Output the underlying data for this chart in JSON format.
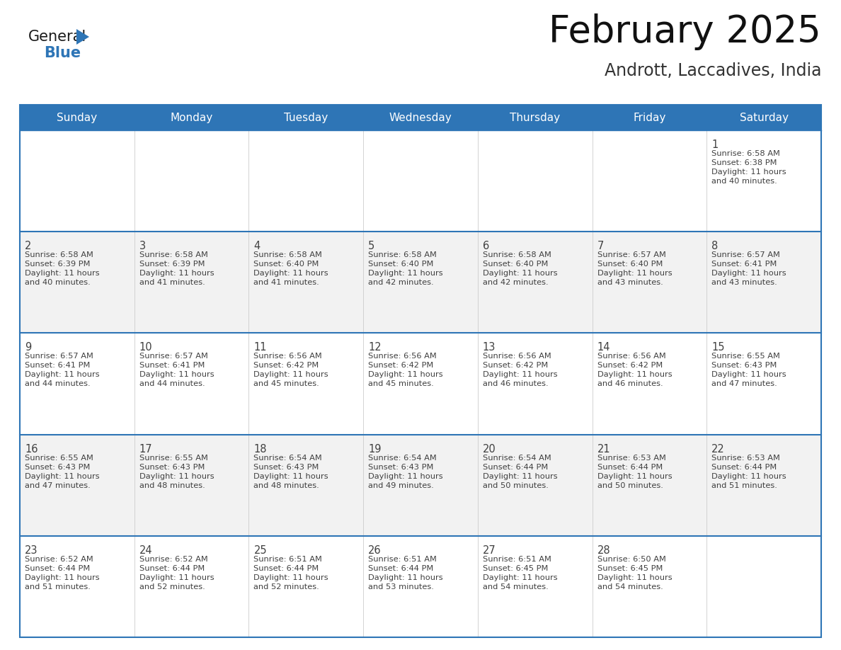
{
  "title": "February 2025",
  "subtitle": "Andrott, Laccadives, India",
  "header_bg": "#2E75B6",
  "header_text_color": "#FFFFFF",
  "cell_bg_odd": "#FFFFFF",
  "cell_bg_even": "#F2F2F2",
  "border_color": "#2E75B6",
  "text_color": "#404040",
  "days_of_week": [
    "Sunday",
    "Monday",
    "Tuesday",
    "Wednesday",
    "Thursday",
    "Friday",
    "Saturday"
  ],
  "calendar_data": [
    [
      null,
      null,
      null,
      null,
      null,
      null,
      {
        "day": "1",
        "sunrise": "6:58 AM",
        "sunset": "6:38 PM",
        "daylight1": "Daylight: 11 hours",
        "daylight2": "and 40 minutes."
      }
    ],
    [
      {
        "day": "2",
        "sunrise": "6:58 AM",
        "sunset": "6:39 PM",
        "daylight1": "Daylight: 11 hours",
        "daylight2": "and 40 minutes."
      },
      {
        "day": "3",
        "sunrise": "6:58 AM",
        "sunset": "6:39 PM",
        "daylight1": "Daylight: 11 hours",
        "daylight2": "and 41 minutes."
      },
      {
        "day": "4",
        "sunrise": "6:58 AM",
        "sunset": "6:40 PM",
        "daylight1": "Daylight: 11 hours",
        "daylight2": "and 41 minutes."
      },
      {
        "day": "5",
        "sunrise": "6:58 AM",
        "sunset": "6:40 PM",
        "daylight1": "Daylight: 11 hours",
        "daylight2": "and 42 minutes."
      },
      {
        "day": "6",
        "sunrise": "6:58 AM",
        "sunset": "6:40 PM",
        "daylight1": "Daylight: 11 hours",
        "daylight2": "and 42 minutes."
      },
      {
        "day": "7",
        "sunrise": "6:57 AM",
        "sunset": "6:40 PM",
        "daylight1": "Daylight: 11 hours",
        "daylight2": "and 43 minutes."
      },
      {
        "day": "8",
        "sunrise": "6:57 AM",
        "sunset": "6:41 PM",
        "daylight1": "Daylight: 11 hours",
        "daylight2": "and 43 minutes."
      }
    ],
    [
      {
        "day": "9",
        "sunrise": "6:57 AM",
        "sunset": "6:41 PM",
        "daylight1": "Daylight: 11 hours",
        "daylight2": "and 44 minutes."
      },
      {
        "day": "10",
        "sunrise": "6:57 AM",
        "sunset": "6:41 PM",
        "daylight1": "Daylight: 11 hours",
        "daylight2": "and 44 minutes."
      },
      {
        "day": "11",
        "sunrise": "6:56 AM",
        "sunset": "6:42 PM",
        "daylight1": "Daylight: 11 hours",
        "daylight2": "and 45 minutes."
      },
      {
        "day": "12",
        "sunrise": "6:56 AM",
        "sunset": "6:42 PM",
        "daylight1": "Daylight: 11 hours",
        "daylight2": "and 45 minutes."
      },
      {
        "day": "13",
        "sunrise": "6:56 AM",
        "sunset": "6:42 PM",
        "daylight1": "Daylight: 11 hours",
        "daylight2": "and 46 minutes."
      },
      {
        "day": "14",
        "sunrise": "6:56 AM",
        "sunset": "6:42 PM",
        "daylight1": "Daylight: 11 hours",
        "daylight2": "and 46 minutes."
      },
      {
        "day": "15",
        "sunrise": "6:55 AM",
        "sunset": "6:43 PM",
        "daylight1": "Daylight: 11 hours",
        "daylight2": "and 47 minutes."
      }
    ],
    [
      {
        "day": "16",
        "sunrise": "6:55 AM",
        "sunset": "6:43 PM",
        "daylight1": "Daylight: 11 hours",
        "daylight2": "and 47 minutes."
      },
      {
        "day": "17",
        "sunrise": "6:55 AM",
        "sunset": "6:43 PM",
        "daylight1": "Daylight: 11 hours",
        "daylight2": "and 48 minutes."
      },
      {
        "day": "18",
        "sunrise": "6:54 AM",
        "sunset": "6:43 PM",
        "daylight1": "Daylight: 11 hours",
        "daylight2": "and 48 minutes."
      },
      {
        "day": "19",
        "sunrise": "6:54 AM",
        "sunset": "6:43 PM",
        "daylight1": "Daylight: 11 hours",
        "daylight2": "and 49 minutes."
      },
      {
        "day": "20",
        "sunrise": "6:54 AM",
        "sunset": "6:44 PM",
        "daylight1": "Daylight: 11 hours",
        "daylight2": "and 50 minutes."
      },
      {
        "day": "21",
        "sunrise": "6:53 AM",
        "sunset": "6:44 PM",
        "daylight1": "Daylight: 11 hours",
        "daylight2": "and 50 minutes."
      },
      {
        "day": "22",
        "sunrise": "6:53 AM",
        "sunset": "6:44 PM",
        "daylight1": "Daylight: 11 hours",
        "daylight2": "and 51 minutes."
      }
    ],
    [
      {
        "day": "23",
        "sunrise": "6:52 AM",
        "sunset": "6:44 PM",
        "daylight1": "Daylight: 11 hours",
        "daylight2": "and 51 minutes."
      },
      {
        "day": "24",
        "sunrise": "6:52 AM",
        "sunset": "6:44 PM",
        "daylight1": "Daylight: 11 hours",
        "daylight2": "and 52 minutes."
      },
      {
        "day": "25",
        "sunrise": "6:51 AM",
        "sunset": "6:44 PM",
        "daylight1": "Daylight: 11 hours",
        "daylight2": "and 52 minutes."
      },
      {
        "day": "26",
        "sunrise": "6:51 AM",
        "sunset": "6:44 PM",
        "daylight1": "Daylight: 11 hours",
        "daylight2": "and 53 minutes."
      },
      {
        "day": "27",
        "sunrise": "6:51 AM",
        "sunset": "6:45 PM",
        "daylight1": "Daylight: 11 hours",
        "daylight2": "and 54 minutes."
      },
      {
        "day": "28",
        "sunrise": "6:50 AM",
        "sunset": "6:45 PM",
        "daylight1": "Daylight: 11 hours",
        "daylight2": "and 54 minutes."
      },
      null
    ]
  ],
  "logo_general_color": "#1a1a1a",
  "logo_blue_color": "#2E75B6",
  "logo_triangle_color": "#2E75B6",
  "fig_width": 11.88,
  "fig_height": 9.18,
  "dpi": 100
}
